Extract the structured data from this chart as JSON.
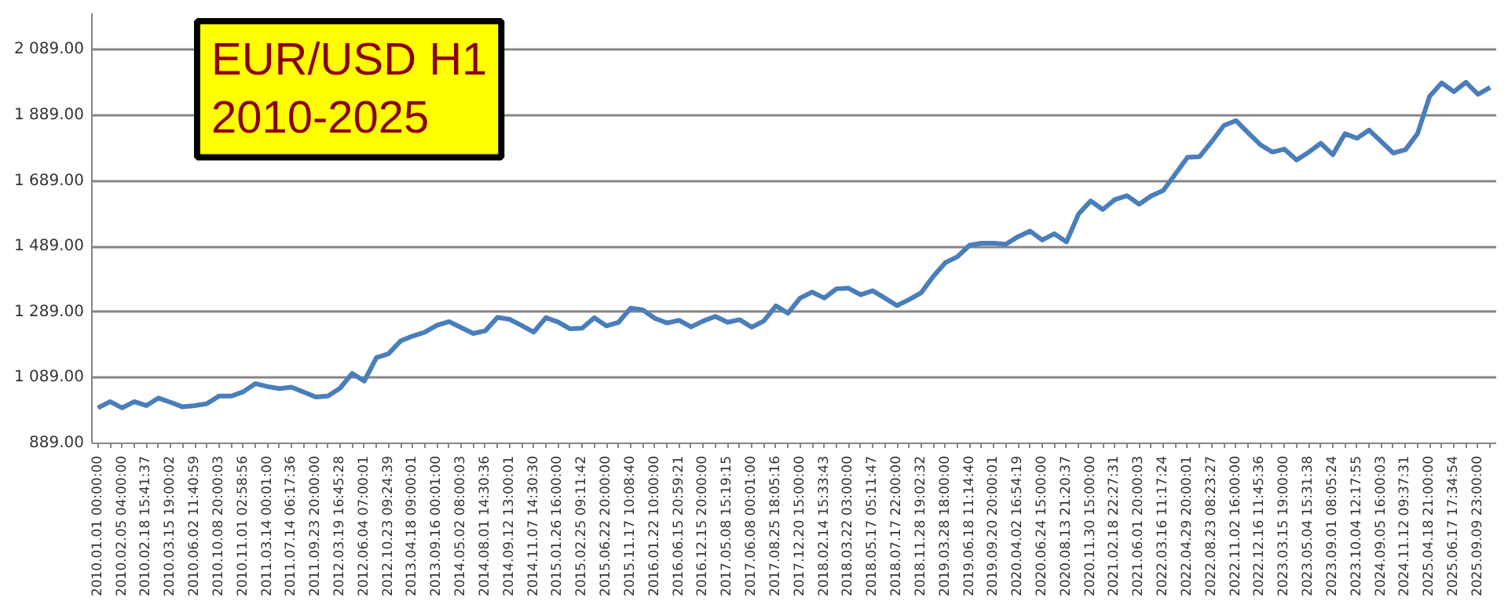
{
  "chart_data": {
    "type": "line",
    "title": "EUR/USD H1\n2010-2025",
    "categories": [
      "2010.01.01 00:00:00",
      null,
      "2010.02.05 04:00:00",
      null,
      "2010.02.18 15:41:37",
      null,
      "2010.03.15 19:00:02",
      null,
      "2010.06.02 11:40:59",
      null,
      "2010.10.08 20:00:03",
      null,
      "2010.11.01 02:58:56",
      null,
      "2011.03.14 00:01:00",
      null,
      "2011.07.14 06:17:36",
      null,
      "2011.09.23 20:00:00",
      null,
      "2012.03.19 16:45:28",
      null,
      "2012.06.04 07:00:01",
      null,
      "2012.10.23 09:24:39",
      null,
      "2013.04.18 09:00:01",
      null,
      "2013.09.16 00:01:00",
      null,
      "2014.05.02 08:00:03",
      null,
      "2014.08.01 14:30:36",
      null,
      "2014.09.12 13:00:01",
      null,
      "2014.11.07 14:30:30",
      null,
      "2015.01.26 16:00:00",
      null,
      "2015.02.25 09:11:42",
      null,
      "2015.06.22 20:00:00",
      null,
      "2015.11.17 10:08:40",
      null,
      "2016.01.22 10:00:00",
      null,
      "2016.06.15 20:59:21",
      null,
      "2016.12.15 20:00:00",
      null,
      "2017.05.08 15:19:15",
      null,
      "2017.06.08 00:01:00",
      null,
      "2017.08.25 18:05:16",
      null,
      "2017.12.20 15:00:00",
      null,
      "2018.02.14 15:33:43",
      null,
      "2018.03.22 03:00:00",
      null,
      "2018.05.17 05:11:47",
      null,
      "2018.07.17 22:00:00",
      null,
      "2018.11.28 19:02:32",
      null,
      "2019.03.28 18:00:00",
      null,
      "2019.06.18 11:14:40",
      null,
      "2019.09.20 20:00:01",
      null,
      "2020.04.02 16:54:19",
      null,
      "2020.06.24 15:00:00",
      null,
      "2020.08.13 21:20:37",
      null,
      "2020.11.30 15:00:00",
      null,
      "2021.02.18 22:27:31",
      null,
      "2021.06.01 20:00:03",
      null,
      "2022.03.16 11:17:24",
      null,
      "2022.04.29 20:00:01",
      null,
      "2022.08.23 08:23:27",
      null,
      "2022.11.02 16:00:00",
      null,
      "2022.12.16 11:45:36",
      null,
      "2023.03.15 19:00:00",
      null,
      "2023.05.04 15:31:38",
      null,
      "2023.09.01 08:05:24",
      null,
      "2023.10.04 12:17:55",
      null,
      "2024.09.05 16:00:03",
      null,
      "2024.11.12 09:37:31",
      null,
      "2025.04.18 21:00:00",
      null,
      "2025.06.17 17:34:54",
      null,
      "2025.09.09 23:00:00",
      null
    ],
    "series": [
      {
        "color": "#4a7ebb",
        "values": [
          997,
          1016,
          997,
          1016,
          1004,
          1027,
          1014,
          1000,
          1004,
          1010,
          1033,
          1033,
          1046,
          1071,
          1062,
          1056,
          1060,
          1045,
          1030,
          1033,
          1057,
          1102,
          1079,
          1150,
          1162,
          1201,
          1216,
          1228,
          1249,
          1260,
          1242,
          1224,
          1232,
          1273,
          1267,
          1248,
          1228,
          1272,
          1259,
          1238,
          1240,
          1272,
          1247,
          1258,
          1301,
          1296,
          1270,
          1256,
          1264,
          1244,
          1262,
          1276,
          1258,
          1266,
          1243,
          1262,
          1308,
          1286,
          1332,
          1350,
          1332,
          1360,
          1362,
          1342,
          1354,
          1332,
          1309,
          1327,
          1348,
          1398,
          1440,
          1458,
          1493,
          1499,
          1499,
          1496,
          1519,
          1536,
          1509,
          1528,
          1503,
          1588,
          1628,
          1602,
          1632,
          1644,
          1618,
          1643,
          1660,
          1710,
          1761,
          1763,
          1809,
          1858,
          1873,
          1836,
          1800,
          1777,
          1786,
          1753,
          1776,
          1804,
          1769,
          1833,
          1819,
          1844,
          1809,
          1774,
          1784,
          1833,
          1947,
          1988,
          1961,
          1990,
          1953,
          1974
        ]
      }
    ],
    "ylim": [
      889,
      2200
    ],
    "yticks": [
      {
        "value": 889,
        "label": "889.00"
      },
      {
        "value": 1089,
        "label": "1 089.00"
      },
      {
        "value": 1289,
        "label": "1 289.00"
      },
      {
        "value": 1489,
        "label": "1 489.00"
      },
      {
        "value": 1689,
        "label": "1 689.00"
      },
      {
        "value": 1889,
        "label": "1 889.00"
      },
      {
        "value": 2089,
        "label": "2 089.00"
      }
    ],
    "grid": "y"
  }
}
